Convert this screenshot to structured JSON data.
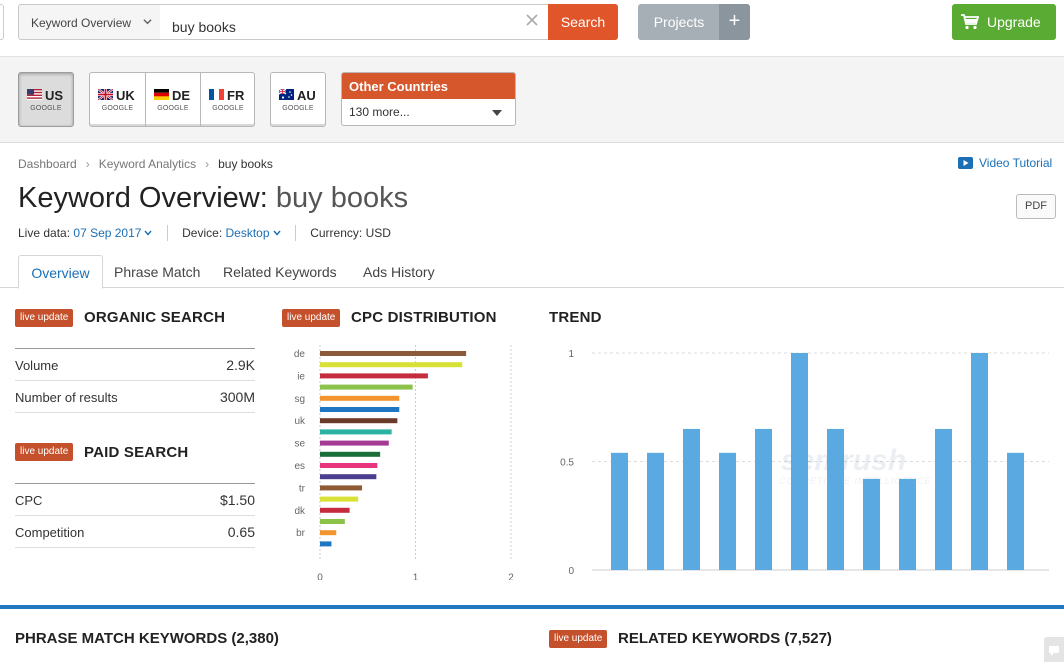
{
  "topbar": {
    "database_select": "Keyword Overview",
    "search_value": "buy books",
    "search_button": "Search",
    "projects_button": "Projects",
    "projects_add": "+",
    "upgrade_button": "Upgrade"
  },
  "countries": {
    "us": {
      "code": "US",
      "engine": "GOOGLE"
    },
    "uk": {
      "code": "UK",
      "engine": "GOOGLE"
    },
    "de": {
      "code": "DE",
      "engine": "GOOGLE"
    },
    "fr": {
      "code": "FR",
      "engine": "GOOGLE"
    },
    "au": {
      "code": "AU",
      "engine": "GOOGLE"
    },
    "other_title": "Other Countries",
    "other_selected": "130 more..."
  },
  "breadcrumb": [
    "Dashboard",
    "Keyword Analytics",
    "buy books"
  ],
  "video_tutorial": "Video Tutorial",
  "title": {
    "prefix": "Keyword Overview:",
    "keyword": "buy books"
  },
  "pdf_button": "PDF",
  "meta": {
    "live_label": "Live data:",
    "date": "07 Sep 2017",
    "device_label": "Device:",
    "device": "Desktop",
    "currency": "Currency: USD"
  },
  "tabs": [
    "Overview",
    "Phrase Match",
    "Related Keywords",
    "Ads History"
  ],
  "live_update": "live update",
  "organic": {
    "title": "ORGANIC SEARCH",
    "rows": [
      {
        "label": "Volume",
        "value": "2.9K"
      },
      {
        "label": "Number of results",
        "value": "300M"
      }
    ]
  },
  "paid": {
    "title": "PAID SEARCH",
    "rows": [
      {
        "label": "CPC",
        "value": "$1.50"
      },
      {
        "label": "Competition",
        "value": "0.65"
      }
    ]
  },
  "cpc_title": "CPC DISTRIBUTION",
  "trend_title": "TREND",
  "watermark": {
    "brand": "semrush",
    "tagline": "COMPETITIVE INTELLIGENCE"
  },
  "chart_data": [
    {
      "type": "bar",
      "orientation": "horizontal",
      "title": "CPC DISTRIBUTION",
      "ylabels": [
        "de",
        "ie",
        "sg",
        "uk",
        "se",
        "es",
        "tr",
        "dk",
        "br"
      ],
      "xticks": [
        "0",
        "1",
        "2"
      ],
      "xlim": [
        0,
        2
      ],
      "values": [
        1.53,
        1.49,
        1.13,
        0.97,
        0.83,
        0.83,
        0.81,
        0.75,
        0.72,
        0.63,
        0.6,
        0.59,
        0.44,
        0.4,
        0.31,
        0.26,
        0.17,
        0.12
      ],
      "colors": [
        "#8a5a3b",
        "#d8e136",
        "#c52c3e",
        "#8bc34a",
        "#f2952e",
        "#1f76c2",
        "#6b3b2a",
        "#2ab3a1",
        "#a53a95",
        "#1b6e3a",
        "#e6347d",
        "#4b3e8f",
        "#8e5b34",
        "#d8e136",
        "#c52c3e",
        "#8bc34a",
        "#f2952e",
        "#1f76c2"
      ]
    },
    {
      "type": "bar",
      "title": "TREND",
      "yticks": [
        "0",
        "0.5",
        "1"
      ],
      "ylim": [
        0,
        1
      ],
      "values": [
        0.54,
        0.54,
        0.65,
        0.54,
        0.65,
        1.0,
        0.65,
        0.42,
        0.42,
        0.65,
        1.0,
        0.54
      ],
      "color": "#5aa9e0"
    }
  ],
  "bottom": {
    "phrase_match": "PHRASE MATCH KEYWORDS (2,380)",
    "related": "RELATED KEYWORDS (7,527)"
  }
}
